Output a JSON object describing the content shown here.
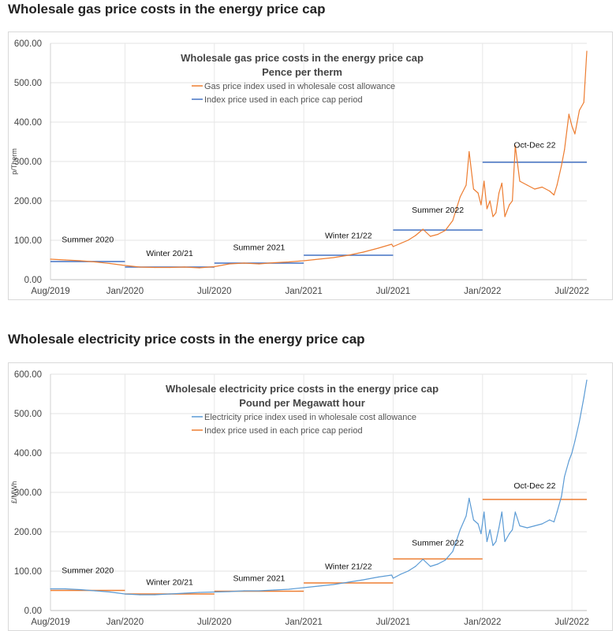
{
  "page": {
    "gas_heading": "Wholesale gas price costs in the energy price cap",
    "electricity_heading": "Wholesale electricity price costs in the energy price cap"
  },
  "chart_data": [
    {
      "type": "line",
      "title": "Wholesale gas price costs in the energy price cap",
      "subtitle": "Pence per therm",
      "ylabel": "p/Therm",
      "xlabel": "",
      "ylim": [
        0,
        600
      ],
      "yticks": [
        "0.00",
        "100.00",
        "200.00",
        "300.00",
        "400.00",
        "500.00",
        "600.00"
      ],
      "xlim": [
        0,
        36
      ],
      "xticks": [
        {
          "label": "Aug/2019",
          "x": 0
        },
        {
          "label": "Jan/2020",
          "x": 5
        },
        {
          "label": "Jul/2020",
          "x": 11
        },
        {
          "label": "Jan/2021",
          "x": 17
        },
        {
          "label": "Jul/2021",
          "x": 23
        },
        {
          "label": "Jan/2022",
          "x": 29
        },
        {
          "label": "Jul/2022",
          "x": 35
        }
      ],
      "legend": [
        {
          "name": "Gas price index used in wholesale cost allowance",
          "color": "#ED7D31"
        },
        {
          "name": "Index price used in each price cap period",
          "color": "#4472C4"
        }
      ],
      "series": [
        {
          "name": "Gas price index used in wholesale cost allowance",
          "color": "#ED7D31",
          "x": [
            0,
            1,
            2,
            3,
            4,
            5,
            6,
            7,
            8,
            9,
            10,
            11,
            12,
            13,
            14,
            15,
            16,
            17,
            18,
            19,
            20,
            21,
            22,
            22.9,
            23,
            23.5,
            24,
            24.5,
            25,
            25.5,
            26,
            26.5,
            27,
            27.5,
            27.9,
            28.1,
            28.4,
            28.7,
            28.9,
            29.1,
            29.3,
            29.5,
            29.7,
            29.9,
            30.1,
            30.3,
            30.5,
            30.8,
            31,
            31.2,
            31.5,
            32,
            32.5,
            33,
            33.5,
            33.8,
            34,
            34.3,
            34.5,
            34.8,
            35,
            35.2,
            35.5,
            35.8,
            36
          ],
          "y": [
            52,
            50,
            48,
            45,
            41,
            36,
            32,
            31,
            31,
            32,
            30,
            33,
            40,
            42,
            40,
            43,
            45,
            48,
            52,
            56,
            62,
            70,
            80,
            90,
            84,
            92,
            100,
            112,
            128,
            110,
            115,
            125,
            150,
            210,
            240,
            325,
            230,
            220,
            190,
            250,
            180,
            200,
            160,
            170,
            220,
            245,
            160,
            190,
            200,
            340,
            250,
            240,
            230,
            235,
            225,
            215,
            240,
            290,
            330,
            420,
            390,
            370,
            430,
            450,
            580
          ]
        },
        {
          "name": "Index price used in each price cap period",
          "color": "#4472C4",
          "segments": [
            {
              "x0": 0,
              "x1": 5,
              "y": 46
            },
            {
              "x0": 5,
              "x1": 11,
              "y": 32
            },
            {
              "x0": 11,
              "x1": 17,
              "y": 42
            },
            {
              "x0": 17,
              "x1": 23,
              "y": 62
            },
            {
              "x0": 23,
              "x1": 29,
              "y": 126
            },
            {
              "x0": 29,
              "x1": 36,
              "y": 298
            }
          ]
        }
      ],
      "annotations": [
        {
          "text": "Summer 2020",
          "x": 2.5,
          "y": 95
        },
        {
          "text": "Winter 20/21",
          "x": 8.0,
          "y": 60
        },
        {
          "text": "Summer 2021",
          "x": 14.0,
          "y": 75
        },
        {
          "text": "Winter 21/22",
          "x": 20.0,
          "y": 105
        },
        {
          "text": "Summer 2022",
          "x": 26.0,
          "y": 170
        },
        {
          "text": "Oct-Dec 22",
          "x": 32.5,
          "y": 335
        }
      ]
    },
    {
      "type": "line",
      "title": "Wholesale electricity price costs in the energy price cap",
      "subtitle": "Pound per Megawatt hour",
      "ylabel": "£/MWh",
      "xlabel": "",
      "ylim": [
        0,
        600
      ],
      "yticks": [
        "0.00",
        "100.00",
        "200.00",
        "300.00",
        "400.00",
        "500.00",
        "600.00"
      ],
      "xlim": [
        0,
        36
      ],
      "xticks": [
        {
          "label": "Aug/2019",
          "x": 0
        },
        {
          "label": "Jan/2020",
          "x": 5
        },
        {
          "label": "Jul/2020",
          "x": 11
        },
        {
          "label": "Jan/2021",
          "x": 17
        },
        {
          "label": "Jul/2021",
          "x": 23
        },
        {
          "label": "Jan/2022",
          "x": 29
        },
        {
          "label": "Jul/2022",
          "x": 35
        }
      ],
      "legend": [
        {
          "name": "Electricity price index used in wholesale cost allowance",
          "color": "#5B9BD5"
        },
        {
          "name": "Index price used in each price cap period",
          "color": "#ED7D31"
        }
      ],
      "series": [
        {
          "name": "Electricity price index used in wholesale cost allowance",
          "color": "#5B9BD5",
          "x": [
            0,
            1,
            2,
            3,
            4,
            5,
            6,
            7,
            8,
            9,
            10,
            11,
            12,
            13,
            14,
            15,
            16,
            17,
            18,
            19,
            20,
            21,
            22,
            22.9,
            23,
            23.5,
            24,
            24.5,
            25,
            25.5,
            26,
            26.5,
            27,
            27.5,
            27.9,
            28.1,
            28.4,
            28.7,
            28.9,
            29.1,
            29.3,
            29.5,
            29.7,
            29.9,
            30.1,
            30.3,
            30.5,
            30.8,
            31,
            31.2,
            31.5,
            32,
            32.5,
            33,
            33.5,
            33.8,
            34,
            34.3,
            34.5,
            34.8,
            35,
            35.2,
            35.5,
            35.8,
            36
          ],
          "y": [
            55,
            55,
            53,
            50,
            47,
            42,
            40,
            40,
            42,
            44,
            46,
            47,
            48,
            50,
            50,
            52,
            54,
            58,
            62,
            66,
            72,
            78,
            85,
            90,
            82,
            92,
            100,
            112,
            130,
            112,
            118,
            128,
            150,
            205,
            240,
            285,
            230,
            220,
            195,
            250,
            175,
            205,
            165,
            175,
            210,
            250,
            175,
            195,
            205,
            250,
            215,
            210,
            215,
            220,
            230,
            225,
            250,
            290,
            340,
            380,
            400,
            430,
            480,
            540,
            585
          ]
        },
        {
          "name": "Index price used in each price cap period",
          "color": "#ED7D31",
          "segments": [
            {
              "x0": 0,
              "x1": 5,
              "y": 51
            },
            {
              "x0": 5,
              "x1": 11,
              "y": 42
            },
            {
              "x0": 11,
              "x1": 17,
              "y": 49
            },
            {
              "x0": 17,
              "x1": 23,
              "y": 70
            },
            {
              "x0": 23,
              "x1": 29,
              "y": 131
            },
            {
              "x0": 29,
              "x1": 36,
              "y": 282
            }
          ]
        }
      ],
      "annotations": [
        {
          "text": "Summer 2020",
          "x": 2.5,
          "y": 95
        },
        {
          "text": "Winter 20/21",
          "x": 8.0,
          "y": 65
        },
        {
          "text": "Summer 2021",
          "x": 14.0,
          "y": 75
        },
        {
          "text": "Winter 21/22",
          "x": 20.0,
          "y": 105
        },
        {
          "text": "Summer 2022",
          "x": 26.0,
          "y": 165
        },
        {
          "text": "Oct-Dec 22",
          "x": 32.5,
          "y": 310
        }
      ]
    }
  ]
}
